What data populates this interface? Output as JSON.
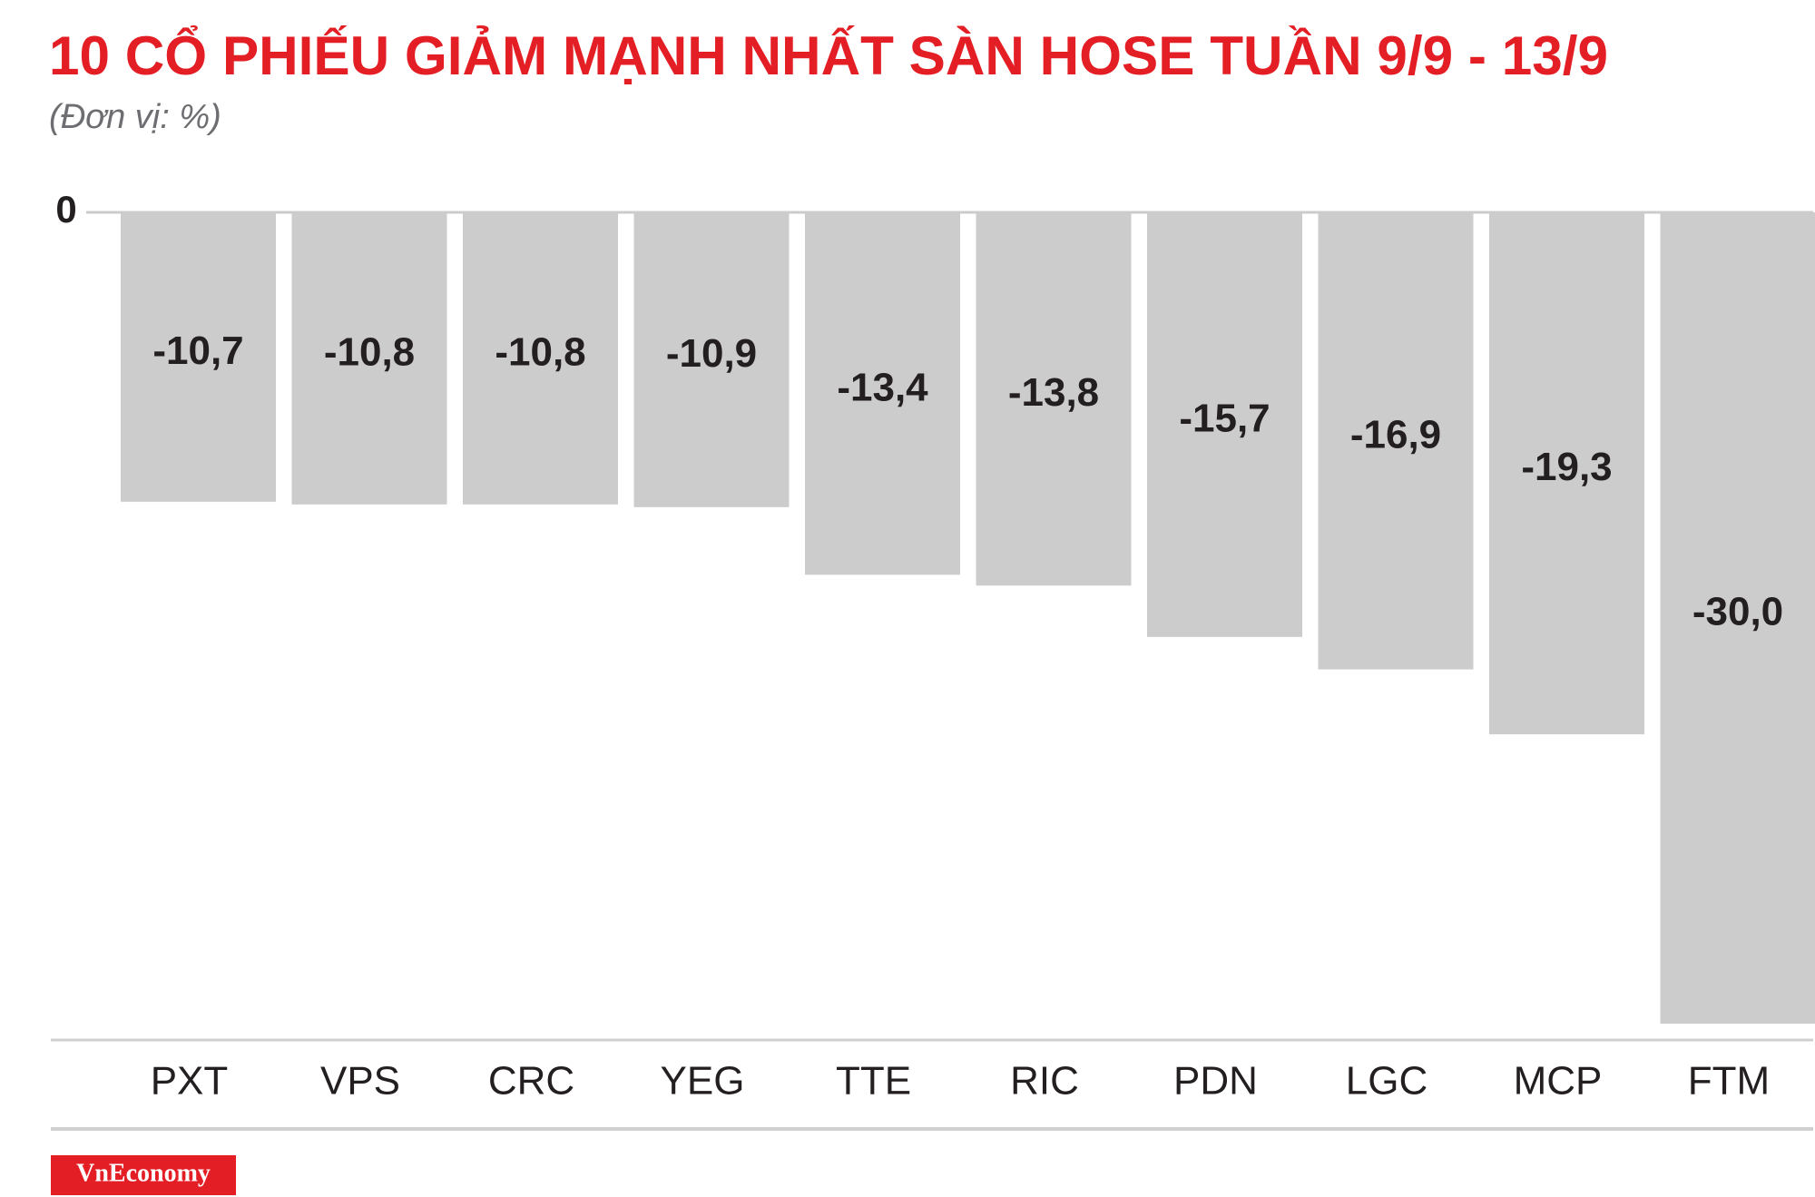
{
  "chart_data": {
    "type": "bar",
    "title": "10 CỔ PHIẾU GIẢM MẠNH NHẤT SÀN HOSE TUẦN 9/9 - 13/9",
    "subtitle": "(Đơn vị: %)",
    "categories": [
      "PXT",
      "VPS",
      "CRC",
      "YEG",
      "TTE",
      "RIC",
      "PDN",
      "LGC",
      "MCP",
      "FTM"
    ],
    "values": [
      -10.7,
      -10.8,
      -10.8,
      -10.9,
      -13.4,
      -13.8,
      -15.7,
      -16.9,
      -19.3,
      -30.0
    ],
    "value_labels": [
      "-10,7",
      "-10,8",
      "-10,8",
      "-10,9",
      "-13,4",
      "-13,8",
      "-15,7",
      "-16,9",
      "-19,3",
      "-30,0"
    ],
    "color": "#cdcccd",
    "ylim": [
      -30,
      0
    ],
    "yticks": [
      0
    ],
    "source": "VnEconomy"
  }
}
